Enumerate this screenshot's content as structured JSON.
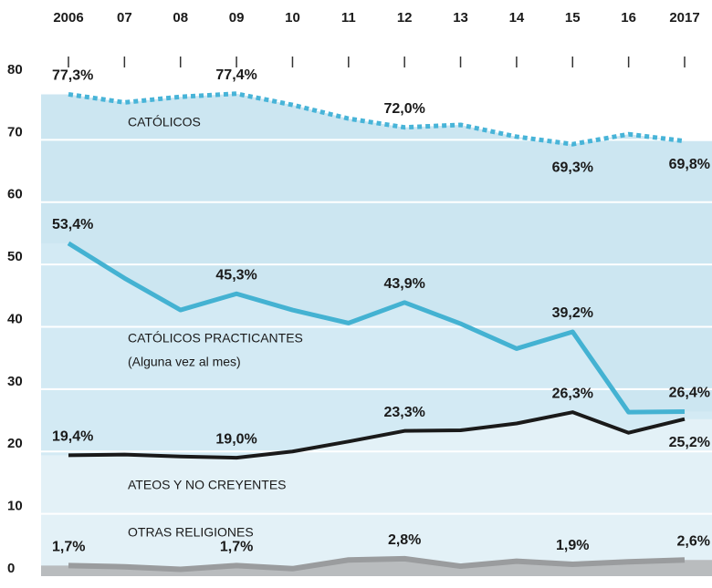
{
  "chart_data": {
    "type": "line",
    "categories": [
      "2006",
      "07",
      "08",
      "09",
      "10",
      "11",
      "12",
      "13",
      "14",
      "15",
      "16",
      "2017"
    ],
    "ylim": [
      0,
      80
    ],
    "yticks": [
      0,
      10,
      20,
      30,
      40,
      50,
      60,
      70,
      80
    ],
    "grid": true,
    "series": [
      {
        "name": "CATÓLICOS",
        "color": "#48b4d8",
        "fill": "#cce6f1",
        "style": "dotted",
        "values": [
          77.3,
          76.0,
          76.9,
          77.4,
          75.6,
          73.4,
          72.0,
          72.4,
          70.5,
          69.3,
          70.9,
          69.8
        ],
        "value_labels": [
          "77,3%",
          null,
          null,
          "77,4%",
          null,
          null,
          "72,0%",
          null,
          null,
          "69,3%",
          null,
          "69,8%"
        ]
      },
      {
        "name": "CATÓLICOS PRACTICANTES",
        "note": "(Alguna vez al mes)",
        "color": "#44b2d2",
        "fill": "#d3eaf4",
        "style": "solid",
        "values": [
          53.4,
          47.8,
          42.7,
          45.3,
          42.7,
          40.6,
          43.9,
          40.5,
          36.5,
          39.2,
          26.3,
          26.4
        ],
        "value_labels": [
          "53,4%",
          null,
          null,
          "45,3%",
          null,
          null,
          "43,9%",
          null,
          null,
          "39,2%",
          null,
          "26,4%"
        ]
      },
      {
        "name": "ATEOS Y NO CREYENTES",
        "color": "#1a1a1a",
        "fill": "#e3f1f7",
        "style": "solid",
        "values": [
          19.4,
          19.5,
          19.2,
          19.0,
          20.0,
          21.6,
          23.3,
          23.4,
          24.5,
          26.3,
          23.0,
          25.2
        ],
        "value_labels": [
          "19,4%",
          null,
          null,
          "19,0%",
          null,
          null,
          "23,3%",
          null,
          null,
          "26,3%",
          null,
          "25,2%"
        ]
      },
      {
        "name": "OTRAS RELIGIONES",
        "color": "#9a9c9e",
        "fill": "#b9bcbe",
        "style": "solid",
        "values": [
          1.7,
          1.5,
          1.1,
          1.7,
          1.2,
          2.6,
          2.8,
          1.6,
          2.4,
          1.9,
          2.3,
          2.6
        ],
        "value_labels": [
          "1,7%",
          null,
          null,
          "1,7%",
          null,
          null,
          "2,8%",
          null,
          null,
          "1,9%",
          null,
          "2,6%"
        ]
      }
    ]
  }
}
